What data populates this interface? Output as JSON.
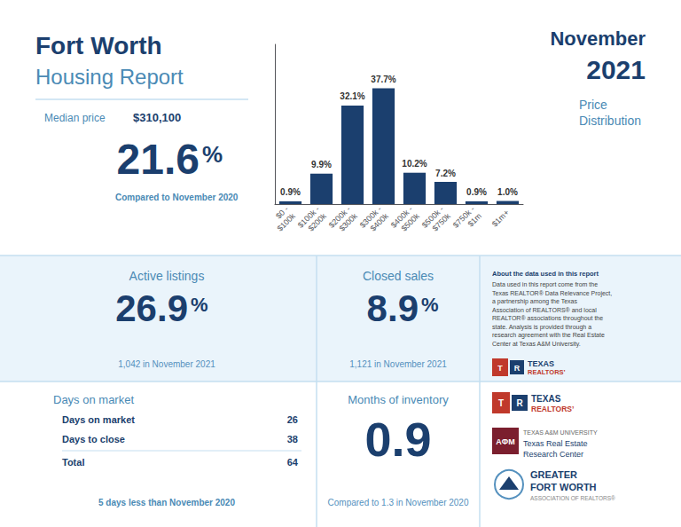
{
  "chart_data": {
    "type": "bar",
    "title": "Price\nDistribution",
    "categories": [
      "$0 -\n$100k",
      "$100k -\n$200k",
      "$200k -\n$300k",
      "$300k -\n$400k",
      "$400k -\n$500k",
      "$500k -\n$750k",
      "$750k -\n$1m",
      "$1m+"
    ],
    "values": [
      0.9,
      9.9,
      32.1,
      37.7,
      10.2,
      7.2,
      0.9,
      1.0
    ],
    "value_labels": [
      "0.9%",
      "9.9%",
      "32.1%",
      "37.7%",
      "10.2%",
      "7.2%",
      "0.9%",
      "1.0%"
    ],
    "color": "#1b3f6e",
    "ylim": [
      0,
      52
    ],
    "grid": false,
    "data_labels": true,
    "tick_labels": "x",
    "annotations": [
      "Fort Worth",
      "Housing Report",
      "November",
      "2021",
      "Median price",
      "$310,100",
      "21.6",
      "%",
      "Compared to November 2020",
      "Active listings",
      "26.9",
      "%",
      "1,042 in November 2021",
      "Closed sales",
      "8.9",
      "%",
      "1,121 in November 2021",
      "About the data used in this report",
      "Data used in this report come from the\nTexas REALTOR® Data Relevance Project,\na partnership among the Texas\nAssociation of REALTORS® and local\nREALTOR® associations throughout the\nstate. Analysis is provided through a\nresearch agreement with the Real Estate\nCenter at Texas A&M University.",
      "T",
      "R",
      "TEXAS",
      "REALTORS’",
      "Days on market",
      "Days on market",
      "26",
      "Days to close",
      "38",
      "Total",
      "64",
      "5 days less than November 2020",
      "Months of inventory",
      "0.9",
      "Compared to 1.3 in November 2020",
      "T",
      "R",
      "TEXAS",
      "REALTORS’",
      "AΦM",
      "TEXAS A&M UNIVERSITY",
      "Texas Real Estate\nResearch Center",
      "GREATER",
      "FORT WORTH",
      "ASSOCIATION OF REALTORS®"
    ]
  }
}
